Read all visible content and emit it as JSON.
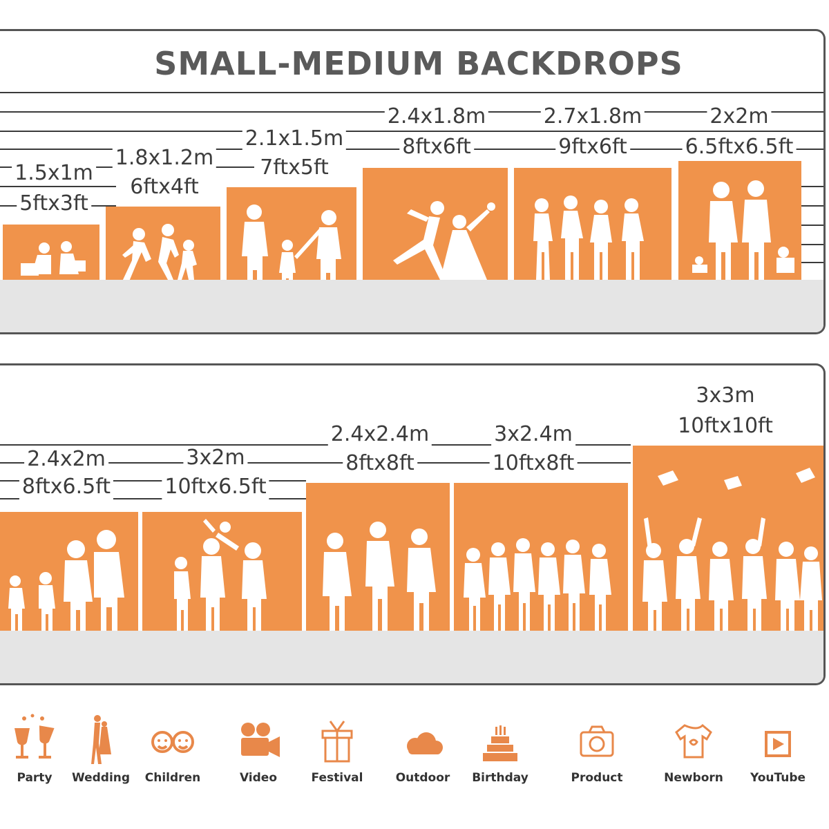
{
  "top_panel": {
    "title": "SMALL-MEDIUM BACKDROPS",
    "sizes": [
      {
        "metric": "1.5x1m",
        "imperial": "5ftx3ft"
      },
      {
        "metric": "1.8x1.2m",
        "imperial": "6ftx4ft"
      },
      {
        "metric": "2.1x1.5m",
        "imperial": "7ftx5ft"
      },
      {
        "metric": "2.4x1.8m",
        "imperial": "8ftx6ft"
      },
      {
        "metric": "2.7x1.8m",
        "imperial": "9ftx6ft"
      },
      {
        "metric": "2x2m",
        "imperial": "6.5ftx6.5ft"
      }
    ]
  },
  "bottom_panel": {
    "sizes": [
      {
        "metric": "2.4x2m",
        "imperial": "8ftx6.5ft"
      },
      {
        "metric": "3x2m",
        "imperial": "10ftx6.5ft"
      },
      {
        "metric": "2.4x2.4m",
        "imperial": "8ftx8ft"
      },
      {
        "metric": "3x2.4m",
        "imperial": "10ftx8ft"
      },
      {
        "metric": "3x3m",
        "imperial": "10ftx10ft"
      }
    ]
  },
  "uses": [
    {
      "label": "Party",
      "icon": "party-glasses-icon"
    },
    {
      "label": "Wedding",
      "icon": "wedding-couple-icon"
    },
    {
      "label": "Children",
      "icon": "children-faces-icon"
    },
    {
      "label": "Video",
      "icon": "video-camera-icon"
    },
    {
      "label": "Festival",
      "icon": "gift-box-icon"
    },
    {
      "label": "Outdoor",
      "icon": "cloud-icon"
    },
    {
      "label": "Birthday",
      "icon": "birthday-cake-icon"
    },
    {
      "label": "Product",
      "icon": "photo-camera-icon"
    },
    {
      "label": "Newborn",
      "icon": "baby-onesie-icon"
    },
    {
      "label": "YouTube",
      "icon": "play-button-icon"
    }
  ],
  "colors": {
    "backdrop": "#f0934b",
    "floor": "#e5e5e5",
    "icon": "#e8884a",
    "border": "#555555"
  }
}
